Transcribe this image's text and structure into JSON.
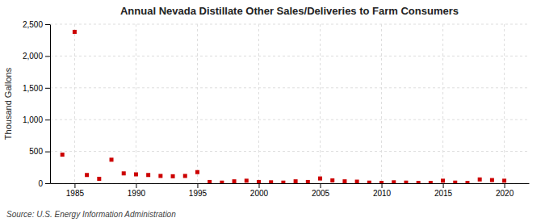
{
  "chart_data": {
    "type": "scatter",
    "title": "Annual Nevada Distillate Other Sales/Deliveries to Farm Consumers",
    "ylabel": "Thousand Gallons",
    "annotations": [
      "Source: U.S. Energy Information Administration"
    ],
    "color": "#cc0000",
    "marker": "square",
    "grid": true,
    "xlim": [
      1983,
      2022
    ],
    "ylim": [
      0,
      2500
    ],
    "xticks": [
      1985,
      1990,
      1995,
      2000,
      2005,
      2010,
      2015,
      2020
    ],
    "yticks": [
      0,
      500,
      {
        "value": 1000,
        "label": "1,000"
      },
      {
        "value": 1500,
        "label": "1,500"
      },
      {
        "value": 2000,
        "label": "2,000"
      },
      {
        "value": 2500,
        "label": "2,500"
      }
    ],
    "x": [
      1984,
      1985,
      1986,
      1987,
      1988,
      1989,
      1990,
      1991,
      1992,
      1993,
      1994,
      1995,
      1996,
      1997,
      1998,
      1999,
      2000,
      2001,
      2002,
      2003,
      2004,
      2005,
      2006,
      2007,
      2008,
      2009,
      2010,
      2011,
      2012,
      2013,
      2014,
      2015,
      2016,
      2017,
      2018,
      2019,
      2020
    ],
    "values": [
      450,
      2380,
      130,
      70,
      370,
      155,
      140,
      130,
      115,
      110,
      115,
      175,
      20,
      10,
      30,
      40,
      20,
      15,
      10,
      30,
      20,
      75,
      45,
      30,
      25,
      10,
      5,
      15,
      10,
      5,
      5,
      40,
      10,
      5,
      60,
      50,
      40
    ]
  }
}
